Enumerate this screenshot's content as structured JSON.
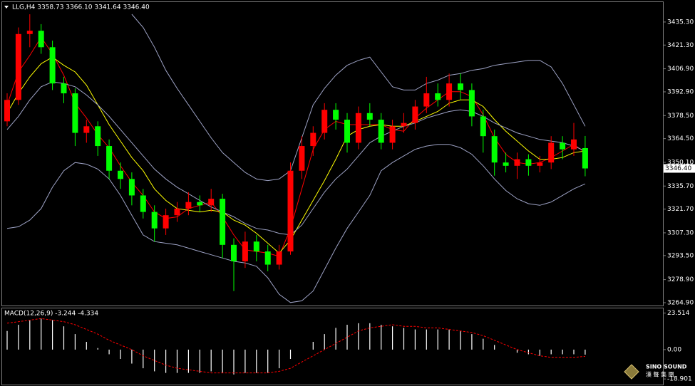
{
  "chart_data": [
    {
      "type": "candlestick",
      "title": "LLG,H4 3358.73 3366.10 3341.64 3346.40",
      "open": [
        3375,
        3388,
        3428,
        3430,
        3420,
        3398,
        3392,
        3368,
        3372,
        3360,
        3345,
        3340,
        3330,
        3320,
        3310,
        3318,
        3322,
        3326,
        3324,
        3328,
        3300,
        3290,
        3302,
        3296,
        3288,
        3296,
        3345,
        3360,
        3368,
        3382,
        3376,
        3362,
        3380,
        3376,
        3362,
        3372,
        3374,
        3384,
        3392,
        3388,
        3398,
        3394,
        3378,
        3366,
        3350,
        3348,
        3352,
        3348,
        3350,
        3362,
        3358,
        3358.73
      ],
      "high": [
        3392,
        3432,
        3440,
        3434,
        3424,
        3402,
        3395,
        3376,
        3375,
        3364,
        3350,
        3344,
        3334,
        3324,
        3322,
        3326,
        3332,
        3330,
        3334,
        3331,
        3304,
        3308,
        3306,
        3300,
        3300,
        3350,
        3366,
        3372,
        3386,
        3386,
        3380,
        3384,
        3386,
        3380,
        3376,
        3380,
        3388,
        3402,
        3398,
        3404,
        3404,
        3398,
        3382,
        3370,
        3356,
        3356,
        3355,
        3354,
        3366,
        3366,
        3374,
        3366.1
      ],
      "low": [
        3372,
        3385,
        3420,
        3416,
        3394,
        3386,
        3360,
        3362,
        3354,
        3340,
        3334,
        3324,
        3316,
        3302,
        3306,
        3314,
        3318,
        3320,
        3320,
        3292,
        3272,
        3286,
        3290,
        3284,
        3285,
        3294,
        3340,
        3354,
        3364,
        3370,
        3356,
        3358,
        3372,
        3358,
        3358,
        3368,
        3370,
        3380,
        3384,
        3384,
        3388,
        3372,
        3356,
        3342,
        3344,
        3340,
        3342,
        3344,
        3346,
        3352,
        3354,
        3341.64
      ],
      "close": [
        3388,
        3428,
        3430,
        3420,
        3398,
        3392,
        3368,
        3372,
        3360,
        3345,
        3340,
        3330,
        3320,
        3310,
        3318,
        3322,
        3326,
        3324,
        3328,
        3300,
        3290,
        3302,
        3296,
        3288,
        3296,
        3345,
        3360,
        3368,
        3382,
        3376,
        3362,
        3380,
        3376,
        3362,
        3372,
        3374,
        3384,
        3392,
        3388,
        3398,
        3394,
        3378,
        3366,
        3350,
        3348,
        3352,
        3348,
        3350,
        3362,
        3358,
        3364,
        3346.4
      ],
      "up_color": "#ff0000",
      "down_color": "#00ff00",
      "overlays": [
        {
          "color": "#ff0000",
          "values": [
            3385,
            3405,
            3415,
            3426,
            3416,
            3403,
            3386,
            3377,
            3367,
            3359,
            3348,
            3338,
            3330,
            3320,
            3316,
            3317,
            3322,
            3324,
            3326,
            3317,
            3306,
            3297,
            3296,
            3295,
            3293,
            3310,
            3334,
            3358,
            3370,
            3375,
            3373,
            3373,
            3373,
            3373,
            3370,
            3369,
            3377,
            3383,
            3388,
            3393,
            3393,
            3390,
            3379,
            3365,
            3355,
            3350,
            3349,
            3350,
            3353,
            3357,
            3361,
            3356
          ]
        },
        {
          "color": "#ffff00",
          "values": [
            3380,
            3392,
            3402,
            3410,
            3414,
            3409,
            3405,
            3397,
            3385,
            3373,
            3363,
            3353,
            3345,
            3334,
            3327,
            3322,
            3321,
            3320,
            3321,
            3320,
            3315,
            3312,
            3307,
            3301,
            3295,
            3303,
            3315,
            3327,
            3339,
            3352,
            3366,
            3370,
            3372,
            3373,
            3372,
            3372,
            3375,
            3378,
            3381,
            3386,
            3388,
            3388,
            3384,
            3376,
            3369,
            3363,
            3357,
            3352,
            3352,
            3353,
            3356,
            3357
          ]
        },
        {
          "color": "#9ea3c6",
          "values": [
            null,
            null,
            null,
            null,
            null,
            null,
            null,
            null,
            null,
            null,
            null,
            3440,
            3432,
            3420,
            3406,
            3395,
            3385,
            3375,
            3365,
            3356,
            3350,
            3344,
            3340,
            3339,
            3340,
            3345,
            3365,
            3385,
            3395,
            3403,
            3409,
            3412,
            3414,
            3405,
            3396,
            3394,
            3394,
            3398,
            3400,
            3403,
            3404,
            3406,
            3407,
            3409,
            3410,
            3411,
            3412,
            3412,
            3408,
            3398,
            3385,
            3372
          ]
        },
        {
          "color": "#9ea3c6",
          "values": [
            3370,
            3378,
            3388,
            3396,
            3399,
            3398,
            3396,
            3391,
            3385,
            3378,
            3370,
            3362,
            3354,
            3346,
            3340,
            3335,
            3331,
            3327,
            3323,
            3320,
            3317,
            3313,
            3310,
            3309,
            3307,
            3306,
            3312,
            3322,
            3332,
            3340,
            3346,
            3354,
            3362,
            3366,
            3369,
            3372,
            3374,
            3377,
            3379,
            3381,
            3382,
            3381,
            3378,
            3374,
            3371,
            3368,
            3366,
            3364,
            3363,
            3362,
            3360,
            3357
          ]
        },
        {
          "color": "#9ea3c6",
          "values": [
            3310,
            3311,
            3315,
            3322,
            3335,
            3345,
            3350,
            3349,
            3346,
            3340,
            3330,
            3318,
            3306,
            3302,
            3301,
            3300,
            3298,
            3296,
            3294,
            3292,
            3290,
            3289,
            3287,
            3280,
            3270,
            3265,
            3266,
            3272,
            3285,
            3298,
            3310,
            3320,
            3330,
            3345,
            3350,
            3354,
            3358,
            3360,
            3361,
            3361,
            3359,
            3355,
            3348,
            3340,
            3333,
            3328,
            3325,
            3324,
            3326,
            3330,
            3334,
            3337
          ]
        }
      ],
      "last_price": {
        "value": 3346.4,
        "label": "3346.40"
      },
      "ylim": [
        3263.6,
        3446.5
      ],
      "yticks": [
        {
          "value": 3435.3,
          "label": "3435.30"
        },
        {
          "value": 3421.3,
          "label": "3421.30"
        },
        {
          "value": 3406.9,
          "label": "3406.90"
        },
        {
          "value": 3392.9,
          "label": "3392.90"
        },
        {
          "value": 3378.5,
          "label": "3378.50"
        },
        {
          "value": 3364.5,
          "label": "3364.50"
        },
        {
          "value": 3350.1,
          "label": "3350.10"
        },
        {
          "value": 3335.7,
          "label": "3335.70"
        },
        {
          "value": 3321.7,
          "label": "3321.70"
        },
        {
          "value": 3307.3,
          "label": "3307.30"
        },
        {
          "value": 3293.5,
          "label": "3293.50"
        },
        {
          "value": 3278.9,
          "label": "3278.90"
        },
        {
          "value": 3264.9,
          "label": "3264.90"
        }
      ],
      "grid": false
    },
    {
      "type": "macd",
      "title": "MACD(12,26,9) -3.244 -4.334",
      "values": [
        12,
        16,
        19,
        20,
        19,
        15,
        10,
        5,
        1,
        -3,
        -6,
        -9,
        -12,
        -14,
        -15,
        -15,
        -15,
        -15,
        -14,
        -15,
        -16,
        -15,
        -15,
        -15,
        -12,
        -6,
        0,
        5,
        10,
        14,
        16,
        17,
        17,
        16,
        15,
        14,
        13,
        13,
        13,
        13,
        12,
        10,
        7,
        3,
        0,
        -2,
        -3,
        -4,
        -3,
        -3,
        -3,
        -3.244
      ],
      "color": "#ffffff",
      "signal": [
        17,
        18,
        19,
        20,
        19,
        18,
        16,
        13,
        10,
        6,
        3,
        0,
        -4,
        -7,
        -10,
        -12,
        -13,
        -14,
        -15,
        -15,
        -15,
        -15,
        -15,
        -15,
        -14,
        -12,
        -8,
        -4,
        0,
        4,
        8,
        12,
        14,
        15,
        16,
        15,
        15,
        14,
        14,
        13,
        12,
        11,
        9,
        6,
        3,
        0,
        -2,
        -4,
        -5,
        -5,
        -5,
        -4.334
      ],
      "signal_color": "#ff0000",
      "ylim": [
        -21.6,
        26.1
      ],
      "yticks": [
        23.514,
        {
          "value": 0,
          "label": "0.00"
        },
        -18.901
      ],
      "grid": false
    }
  ],
  "logo": {
    "name": "SINO SOUND",
    "subtitle": "漢 聲 集 團"
  }
}
